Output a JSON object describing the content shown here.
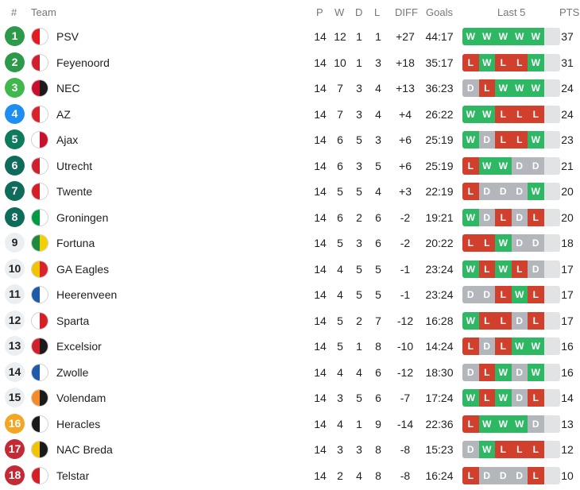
{
  "header": {
    "rank": "#",
    "team": "Team",
    "p": "P",
    "w": "W",
    "d": "D",
    "l": "L",
    "diff": "DIFF",
    "goals": "Goals",
    "last5": "Last 5",
    "pts": "PTS"
  },
  "colors": {
    "win": "#2eb864",
    "loss": "#d0402d",
    "draw": "#b3b6ba",
    "empty": "#e2e3e5",
    "zone_champions": "#2c9a49",
    "zone_ucl_qual": "#41b84d",
    "zone_uel": "#1f8ef1",
    "zone_uecl": "#0f7a5c",
    "zone_playoff": "#f3a623",
    "zone_relegation": "#c22a36"
  },
  "rows": [
    {
      "rank": "1",
      "team": "PSV",
      "p": "14",
      "w": "12",
      "d": "1",
      "l": "1",
      "diff": "+27",
      "goals": "44:17",
      "pts": "37",
      "last5": [
        "W",
        "W",
        "W",
        "W",
        "W"
      ],
      "badge": "#2c9a49",
      "badge_text": "#ffffff",
      "logo_icon": "psv-logo-icon",
      "logo": [
        "#e21b23",
        "#ffffff"
      ]
    },
    {
      "rank": "2",
      "team": "Feyenoord",
      "p": "14",
      "w": "10",
      "d": "1",
      "l": "3",
      "diff": "+18",
      "goals": "35:17",
      "pts": "31",
      "last5": [
        "L",
        "W",
        "L",
        "L",
        "W"
      ],
      "badge": "#2c9a49",
      "badge_text": "#ffffff",
      "logo_icon": "feyenoord-logo-icon",
      "logo": [
        "#d0202e",
        "#ffffff"
      ]
    },
    {
      "rank": "3",
      "team": "NEC",
      "p": "14",
      "w": "7",
      "d": "3",
      "l": "4",
      "diff": "+13",
      "goals": "36:23",
      "pts": "24",
      "last5": [
        "D",
        "L",
        "W",
        "W",
        "W"
      ],
      "badge": "#41b84d",
      "badge_text": "#ffffff",
      "logo_icon": "nec-logo-icon",
      "logo": [
        "#c8102e",
        "#1a1a1a"
      ]
    },
    {
      "rank": "4",
      "team": "AZ",
      "p": "14",
      "w": "7",
      "d": "3",
      "l": "4",
      "diff": "+4",
      "goals": "26:22",
      "pts": "24",
      "last5": [
        "W",
        "W",
        "L",
        "L",
        "L"
      ],
      "badge": "#1f8ef1",
      "badge_text": "#ffffff",
      "logo_icon": "az-logo-icon",
      "logo": [
        "#d8232a",
        "#ffffff"
      ]
    },
    {
      "rank": "5",
      "team": "Ajax",
      "p": "14",
      "w": "6",
      "d": "5",
      "l": "3",
      "diff": "+6",
      "goals": "25:19",
      "pts": "23",
      "last5": [
        "W",
        "D",
        "L",
        "L",
        "W"
      ],
      "badge": "#0f7a5c",
      "badge_text": "#ffffff",
      "logo_icon": "ajax-logo-icon",
      "logo": [
        "#ffffff",
        "#c8102e"
      ]
    },
    {
      "rank": "6",
      "team": "Utrecht",
      "p": "14",
      "w": "6",
      "d": "3",
      "l": "5",
      "diff": "+6",
      "goals": "25:19",
      "pts": "21",
      "last5": [
        "L",
        "W",
        "W",
        "D",
        "D"
      ],
      "badge": "#0f6b5a",
      "badge_text": "#ffffff",
      "logo_icon": "utrecht-logo-icon",
      "logo": [
        "#d0202e",
        "#ffffff"
      ]
    },
    {
      "rank": "7",
      "team": "Twente",
      "p": "14",
      "w": "5",
      "d": "5",
      "l": "4",
      "diff": "+3",
      "goals": "22:19",
      "pts": "20",
      "last5": [
        "L",
        "D",
        "D",
        "D",
        "W"
      ],
      "badge": "#0f6b5a",
      "badge_text": "#ffffff",
      "logo_icon": "twente-logo-icon",
      "logo": [
        "#d41f26",
        "#ffffff"
      ]
    },
    {
      "rank": "8",
      "team": "Groningen",
      "p": "14",
      "w": "6",
      "d": "2",
      "l": "6",
      "diff": "-2",
      "goals": "19:21",
      "pts": "20",
      "last5": [
        "W",
        "D",
        "L",
        "D",
        "L"
      ],
      "badge": "#0f6b5a",
      "badge_text": "#ffffff",
      "logo_icon": "groningen-logo-icon",
      "logo": [
        "#009a44",
        "#ffffff"
      ]
    },
    {
      "rank": "9",
      "team": "Fortuna",
      "p": "14",
      "w": "5",
      "d": "3",
      "l": "6",
      "diff": "-2",
      "goals": "20:22",
      "pts": "18",
      "last5": [
        "L",
        "L",
        "W",
        "D",
        "D"
      ],
      "badge": "#eceff1",
      "badge_text": "#222222",
      "logo_icon": "fortuna-logo-icon",
      "logo": [
        "#1f8a3b",
        "#f5d000"
      ]
    },
    {
      "rank": "10",
      "team": "GA Eagles",
      "p": "14",
      "w": "4",
      "d": "5",
      "l": "5",
      "diff": "-1",
      "goals": "23:24",
      "pts": "17",
      "last5": [
        "W",
        "L",
        "W",
        "L",
        "D"
      ],
      "badge": "#eceff1",
      "badge_text": "#222222",
      "logo_icon": "ga-eagles-logo-icon",
      "logo": [
        "#f2c400",
        "#d8232a"
      ]
    },
    {
      "rank": "11",
      "team": "Heerenveen",
      "p": "14",
      "w": "4",
      "d": "5",
      "l": "5",
      "diff": "-1",
      "goals": "23:24",
      "pts": "17",
      "last5": [
        "D",
        "D",
        "L",
        "W",
        "L"
      ],
      "badge": "#eceff1",
      "badge_text": "#222222",
      "logo_icon": "heerenveen-logo-icon",
      "logo": [
        "#1e5aa8",
        "#ffffff"
      ]
    },
    {
      "rank": "12",
      "team": "Sparta",
      "p": "14",
      "w": "5",
      "d": "2",
      "l": "7",
      "diff": "-12",
      "goals": "16:28",
      "pts": "17",
      "last5": [
        "W",
        "L",
        "L",
        "D",
        "L"
      ],
      "badge": "#eceff1",
      "badge_text": "#222222",
      "logo_icon": "sparta-logo-icon",
      "logo": [
        "#ffffff",
        "#d41f26"
      ]
    },
    {
      "rank": "13",
      "team": "Excelsior",
      "p": "14",
      "w": "5",
      "d": "1",
      "l": "8",
      "diff": "-10",
      "goals": "14:24",
      "pts": "16",
      "last5": [
        "L",
        "D",
        "L",
        "W",
        "W"
      ],
      "badge": "#eceff1",
      "badge_text": "#222222",
      "logo_icon": "excelsior-logo-icon",
      "logo": [
        "#d0202e",
        "#1a1a1a"
      ]
    },
    {
      "rank": "14",
      "team": "Zwolle",
      "p": "14",
      "w": "4",
      "d": "4",
      "l": "6",
      "diff": "-12",
      "goals": "18:30",
      "pts": "16",
      "last5": [
        "D",
        "L",
        "W",
        "D",
        "W"
      ],
      "badge": "#eceff1",
      "badge_text": "#222222",
      "logo_icon": "zwolle-logo-icon",
      "logo": [
        "#1e5aa8",
        "#ffffff"
      ]
    },
    {
      "rank": "15",
      "team": "Volendam",
      "p": "14",
      "w": "3",
      "d": "5",
      "l": "6",
      "diff": "-7",
      "goals": "17:24",
      "pts": "14",
      "last5": [
        "W",
        "L",
        "W",
        "D",
        "L"
      ],
      "badge": "#eceff1",
      "badge_text": "#222222",
      "logo_icon": "volendam-logo-icon",
      "logo": [
        "#f28c28",
        "#1a1a1a"
      ]
    },
    {
      "rank": "16",
      "team": "Heracles",
      "p": "14",
      "w": "4",
      "d": "1",
      "l": "9",
      "diff": "-14",
      "goals": "22:36",
      "pts": "13",
      "last5": [
        "L",
        "W",
        "W",
        "W",
        "D"
      ],
      "badge": "#f3a623",
      "badge_text": "#ffffff",
      "logo_icon": "heracles-logo-icon",
      "logo": [
        "#1a1a1a",
        "#ffffff"
      ]
    },
    {
      "rank": "17",
      "team": "NAC Breda",
      "p": "14",
      "w": "3",
      "d": "3",
      "l": "8",
      "diff": "-8",
      "goals": "15:23",
      "pts": "12",
      "last5": [
        "D",
        "W",
        "L",
        "L",
        "L"
      ],
      "badge": "#c22a36",
      "badge_text": "#ffffff",
      "logo_icon": "nac-breda-logo-icon",
      "logo": [
        "#f2c400",
        "#1a1a1a"
      ]
    },
    {
      "rank": "18",
      "team": "Telstar",
      "p": "14",
      "w": "2",
      "d": "4",
      "l": "8",
      "diff": "-8",
      "goals": "16:24",
      "pts": "10",
      "last5": [
        "L",
        "D",
        "D",
        "D",
        "L"
      ],
      "badge": "#c22a36",
      "badge_text": "#ffffff",
      "logo_icon": "telstar-logo-icon",
      "logo": [
        "#d41f26",
        "#ffffff"
      ]
    }
  ]
}
